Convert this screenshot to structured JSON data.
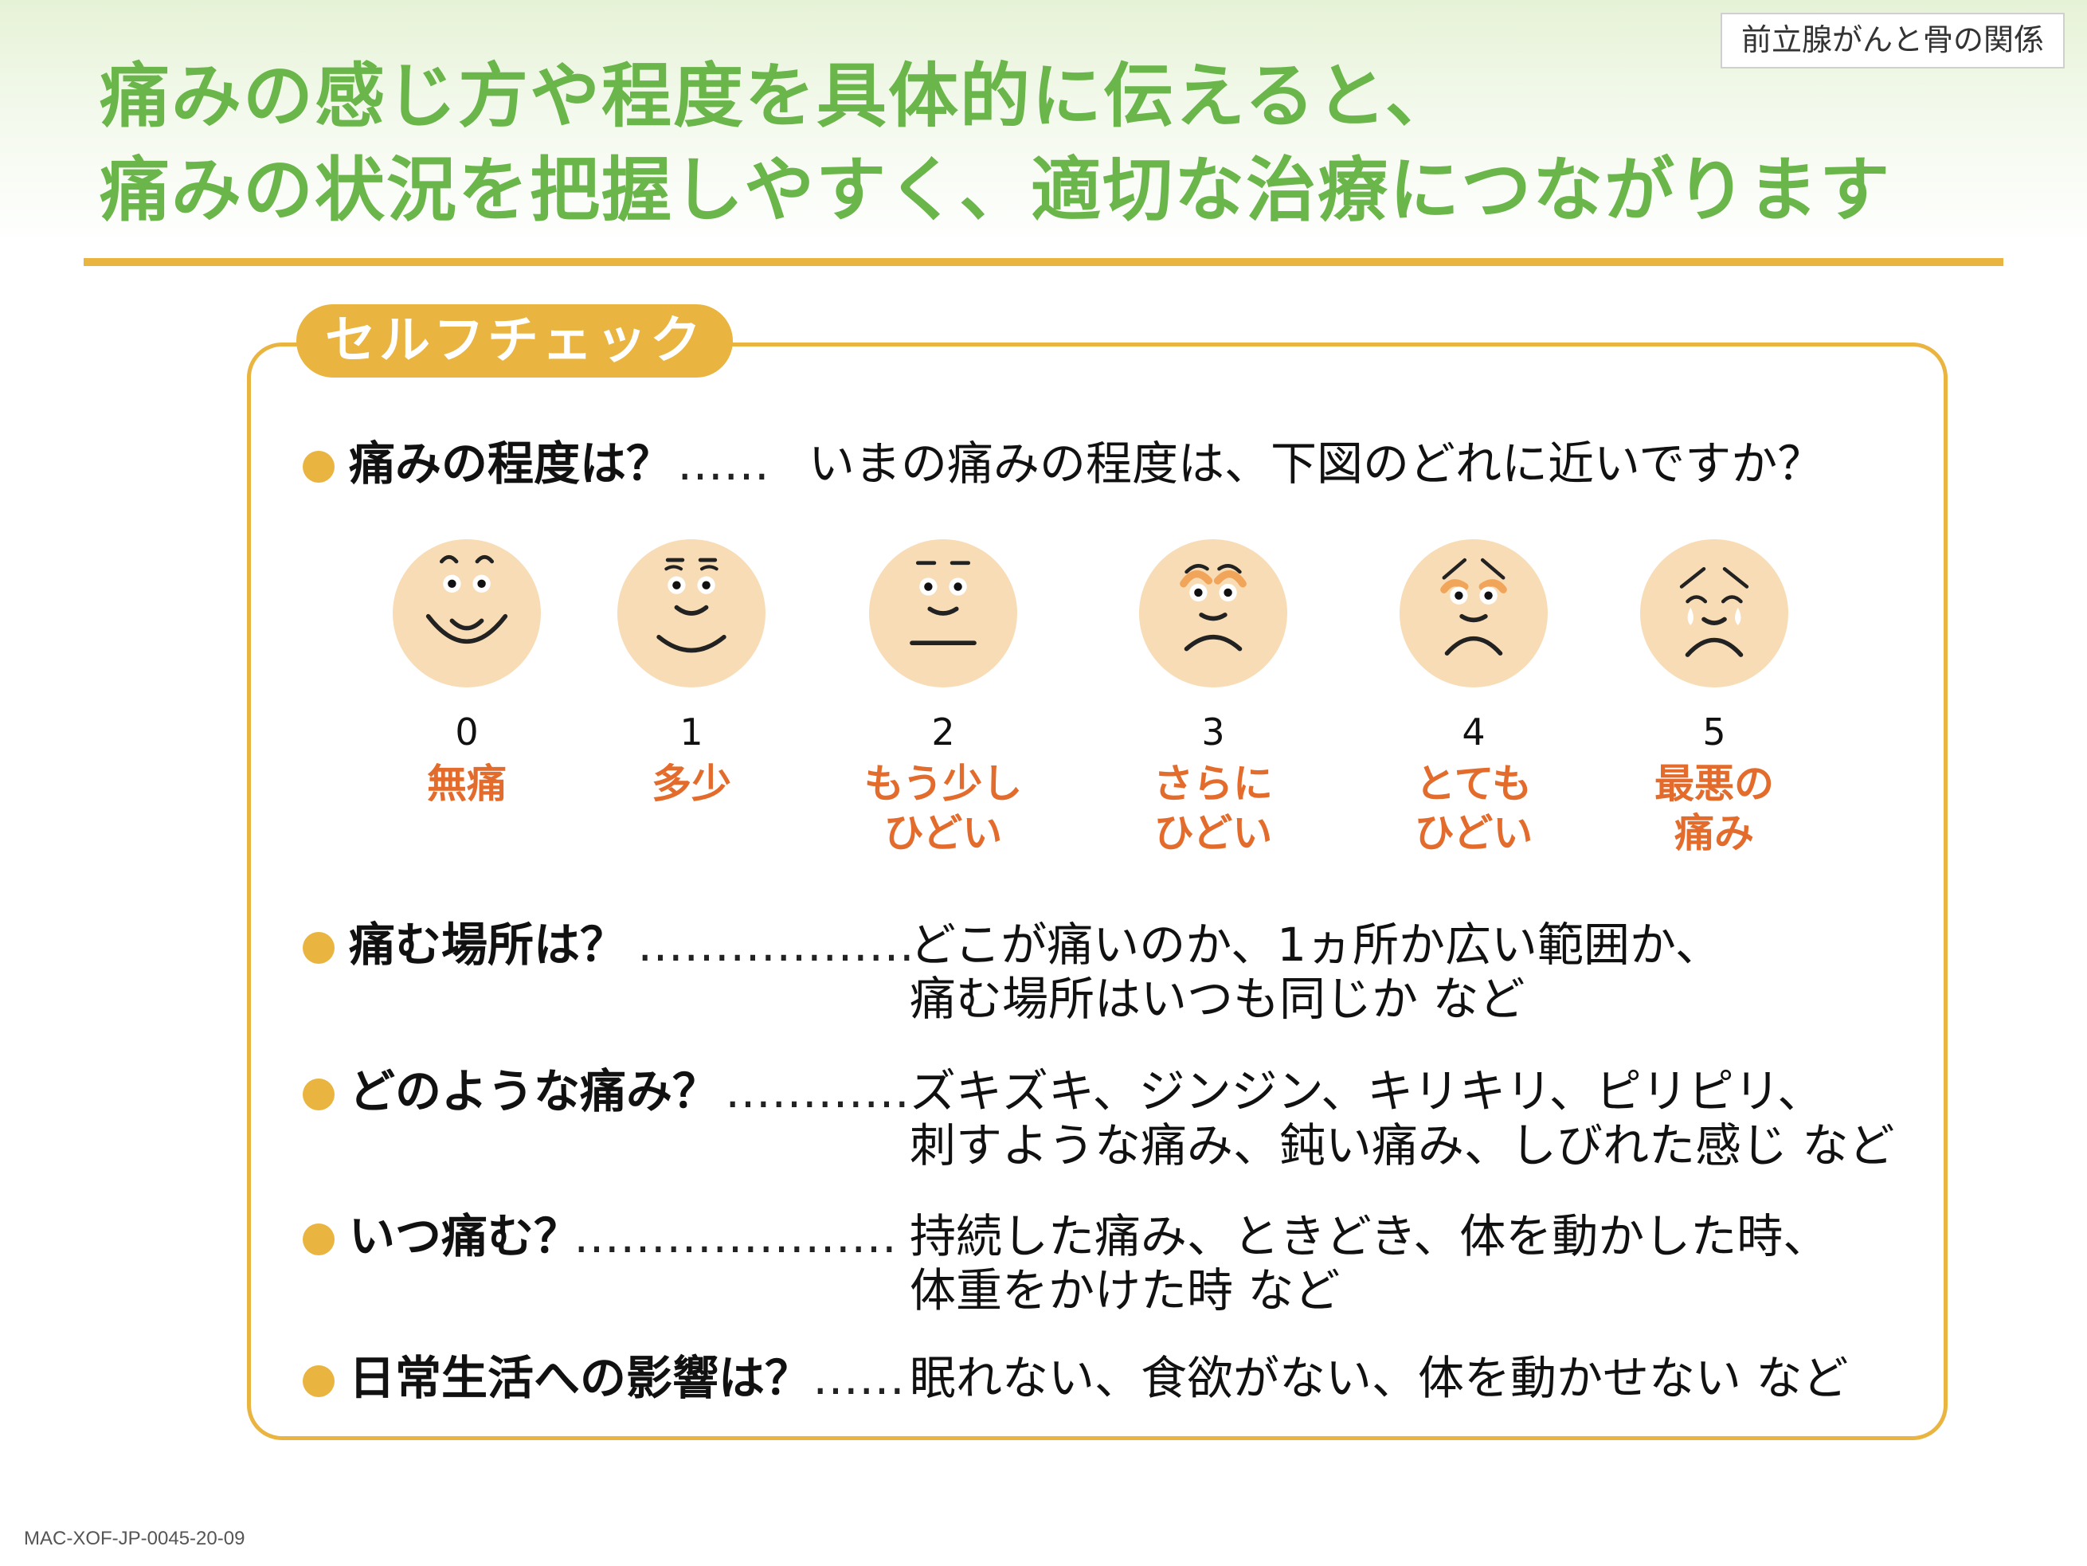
{
  "header": {
    "topic_tag": "前立腺がんと骨の関係",
    "headline_line1": "痛みの感じ方や程度を具体的に伝えると、",
    "headline_line2": "痛みの状況を把握しやすく、適切な治療につながります"
  },
  "self_check": {
    "title": "セルフチェック",
    "pain_level": {
      "label": "痛みの程度は？",
      "dots": "……",
      "answer": "いまの痛みの程度は、下図のどれに近いですか？"
    },
    "faces": [
      {
        "num": "0",
        "label_line1": "無痛",
        "label_line2": ""
      },
      {
        "num": "1",
        "label_line1": "多少",
        "label_line2": ""
      },
      {
        "num": "2",
        "label_line1": "もう少し",
        "label_line2": "ひどい"
      },
      {
        "num": "3",
        "label_line1": "さらに",
        "label_line2": "ひどい"
      },
      {
        "num": "4",
        "label_line1": "とても",
        "label_line2": "ひどい"
      },
      {
        "num": "5",
        "label_line1": "最悪の",
        "label_line2": "痛み"
      }
    ],
    "questions": [
      {
        "label": "痛む場所は？",
        "dots": "………………",
        "answer_line1": "どこが痛いのか、1ヵ所か広い範囲か、",
        "answer_line2": "痛む場所はいつも同じか など"
      },
      {
        "label": "どのような痛み？",
        "dots": "…………",
        "answer_line1": "ズキズキ、ジンジン、キリキリ、ピリピリ、",
        "answer_line2": "刺すような痛み、鈍い痛み、しびれた感じ など"
      },
      {
        "label": "いつ痛む？",
        "dots": "…………………",
        "answer_line1": "持続した痛み、ときどき、体を動かした時、",
        "answer_line2": "体重をかけた時 など"
      },
      {
        "label": "日常生活への影響は？",
        "dots": "……",
        "answer_line1": "眠れない、食欲がない、体を動かせない など",
        "answer_line2": ""
      }
    ]
  },
  "footer": {
    "code": "MAC-XOF-JP-0045-20-09"
  },
  "colors": {
    "green_heading": "#6ab64a",
    "gold_accent": "#e9b43f",
    "orange_label": "#e36c2c",
    "face_fill": "#f7dcb5",
    "cheek": "#f0a55a",
    "tear": "#ffffff"
  }
}
